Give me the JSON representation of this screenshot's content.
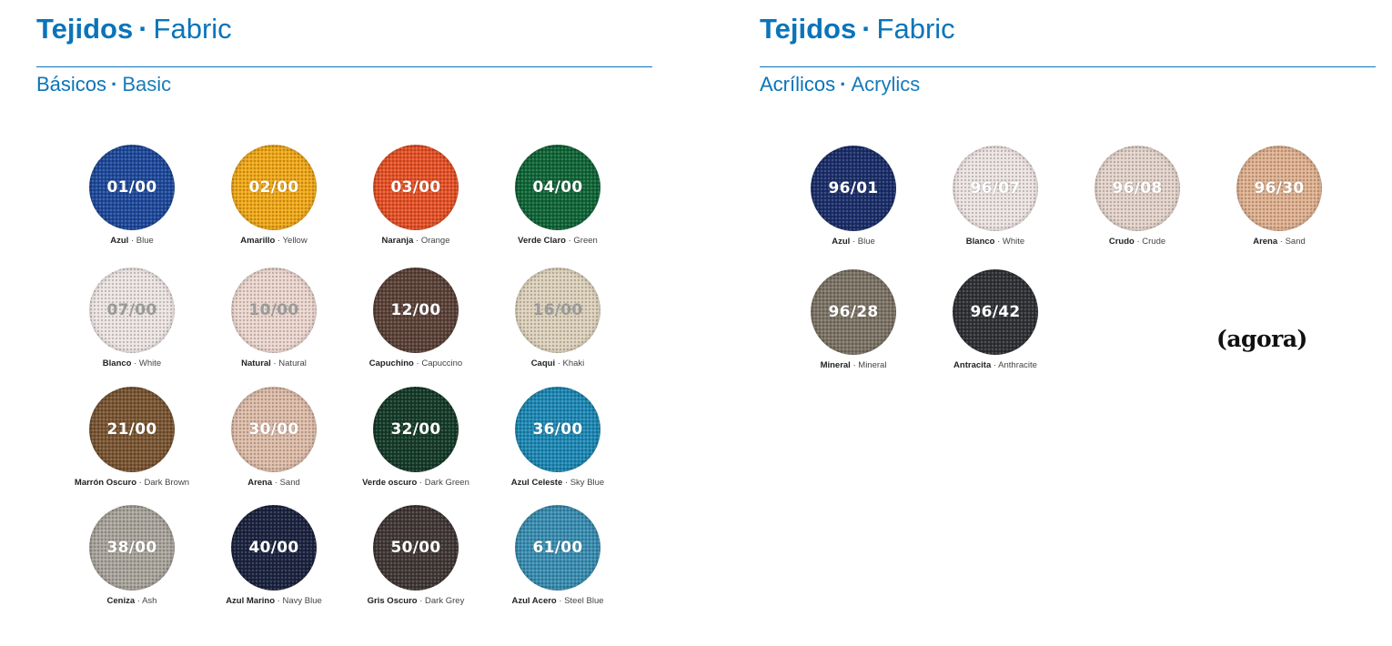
{
  "left": {
    "title_es": "Tejidos",
    "title_sep": "·",
    "title_en": "Fabric",
    "subtitle_es": "Básicos",
    "subtitle_sep": "·",
    "subtitle_en": "Basic",
    "swatches": [
      {
        "code": "01/00",
        "es": "Azul",
        "en": "Blue",
        "color": "#1f4a9c",
        "light": false
      },
      {
        "code": "02/00",
        "es": "Amarillo",
        "en": "Yellow",
        "color": "#f0a818",
        "light": false
      },
      {
        "code": "03/00",
        "es": "Naranja",
        "en": "Orange",
        "color": "#e65227",
        "light": false
      },
      {
        "code": "04/00",
        "es": "Verde Claro",
        "en": "Green",
        "color": "#116638",
        "light": false
      },
      {
        "code": "07/00",
        "es": "Blanco",
        "en": "White",
        "color": "#ece4e2",
        "light": true
      },
      {
        "code": "10/00",
        "es": "Natural",
        "en": "Natural",
        "color": "#ebd6ce",
        "light": true
      },
      {
        "code": "12/00",
        "es": "Capuchino",
        "en": "Capuccino",
        "color": "#5b4238",
        "light": false
      },
      {
        "code": "16/00",
        "es": "Caqui",
        "en": "Khaki",
        "color": "#ddd1bb",
        "light": true
      },
      {
        "code": "21/00",
        "es": "Marrón Oscuro",
        "en": "Dark Brown",
        "color": "#7a5633",
        "light": false
      },
      {
        "code": "30/00",
        "es": "Arena",
        "en": "Sand",
        "color": "#ddbba8",
        "light": false
      },
      {
        "code": "32/00",
        "es": "Verde oscuro",
        "en": "Dark Green",
        "color": "#163c2a",
        "light": false
      },
      {
        "code": "36/00",
        "es": "Azul Celeste",
        "en": "Sky Blue",
        "color": "#1e89b5",
        "light": false
      },
      {
        "code": "38/00",
        "es": "Ceniza",
        "en": "Ash",
        "color": "#a9a59c",
        "light": false
      },
      {
        "code": "40/00",
        "es": "Azul Marino",
        "en": "Navy Blue",
        "color": "#1c2440",
        "light": false
      },
      {
        "code": "50/00",
        "es": "Gris Oscuro",
        "en": "Dark Grey",
        "color": "#413836",
        "light": false
      },
      {
        "code": "61/00",
        "es": "Azul Acero",
        "en": "Steel Blue",
        "color": "#3a8eb2",
        "light": false
      }
    ]
  },
  "right": {
    "title_es": "Tejidos",
    "title_sep": "·",
    "title_en": "Fabric",
    "subtitle_es": "Acrílicos",
    "subtitle_sep": "·",
    "subtitle_en": "Acrylics",
    "swatches": [
      {
        "code": "96/01",
        "es": "Azul",
        "en": "Blue",
        "color": "#1c2f6b",
        "light": false
      },
      {
        "code": "96/07",
        "es": "Blanco",
        "en": "White",
        "color": "#ece3e2",
        "light": false
      },
      {
        "code": "96/08",
        "es": "Crudo",
        "en": "Crude",
        "color": "#e3d3cb",
        "light": false
      },
      {
        "code": "96/30",
        "es": "Arena",
        "en": "Sand",
        "color": "#dfb190",
        "light": false
      },
      {
        "code": "96/28",
        "es": "Mineral",
        "en": "Mineral",
        "color": "#7d7466",
        "light": false
      },
      {
        "code": "96/42",
        "es": "Antracita",
        "en": "Anthracite",
        "color": "#303236",
        "light": false
      }
    ],
    "logo": "(agora)"
  },
  "colors": {
    "accent": "#0a74b9"
  }
}
